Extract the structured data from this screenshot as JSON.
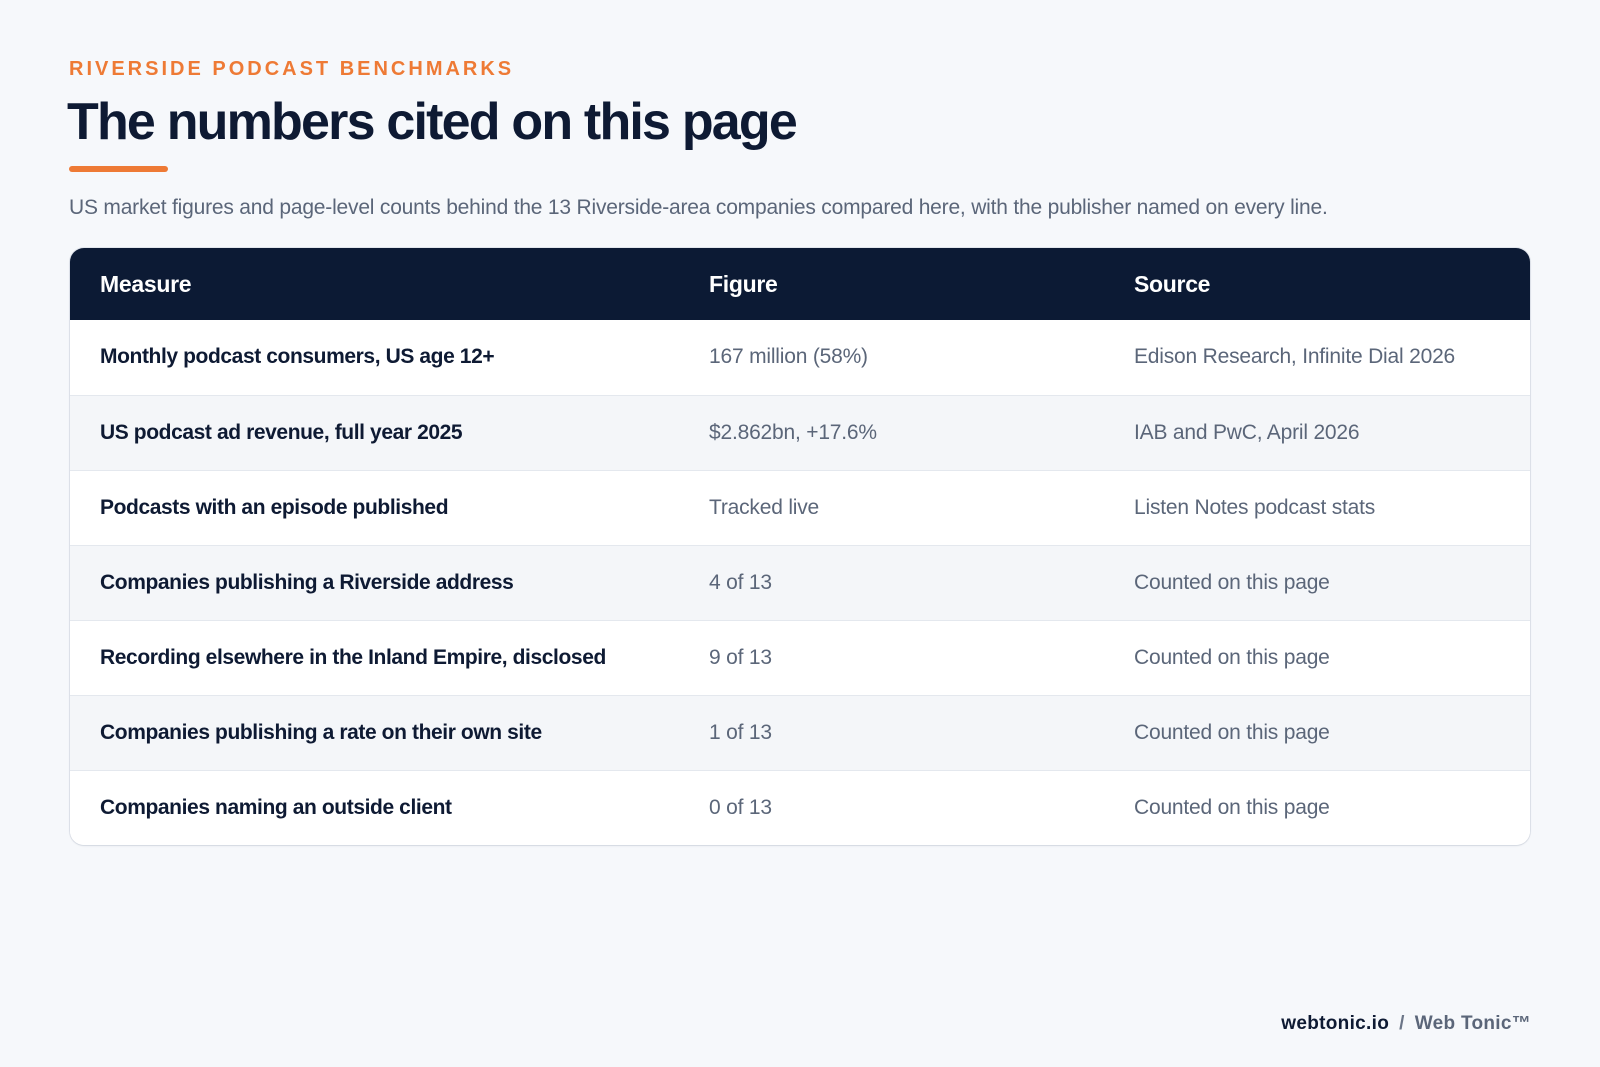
{
  "header": {
    "eyebrow": "RIVERSIDE PODCAST BENCHMARKS",
    "title": "The numbers cited on this page",
    "subtitle": "US market figures and page-level counts behind the 13 Riverside-area companies compared here, with the publisher named on every line."
  },
  "table": {
    "columns": [
      "Measure",
      "Figure",
      "Source"
    ],
    "rows": [
      {
        "measure": "Monthly podcast consumers, US age 12+",
        "figure": "167 million (58%)",
        "source": "Edison Research, Infinite Dial 2026"
      },
      {
        "measure": "US podcast ad revenue, full year 2025",
        "figure": "$2.862bn, +17.6%",
        "source": "IAB and PwC, April 2026"
      },
      {
        "measure": "Podcasts with an episode published",
        "figure": "Tracked live",
        "source": "Listen Notes podcast stats"
      },
      {
        "measure": "Companies publishing a Riverside address",
        "figure": "4 of 13",
        "source": "Counted on this page"
      },
      {
        "measure": "Recording elsewhere in the Inland Empire, disclosed",
        "figure": "9 of 13",
        "source": "Counted on this page"
      },
      {
        "measure": "Companies publishing a rate on their own site",
        "figure": "1 of 13",
        "source": "Counted on this page"
      },
      {
        "measure": "Companies naming an outside client",
        "figure": "0 of 13",
        "source": "Counted on this page"
      }
    ]
  },
  "footer": {
    "domain": "webtonic.io",
    "separator": "/",
    "brand": "Web Tonic™"
  },
  "colors": {
    "accent": "#ee7a35",
    "header_bg": "#0c1a34",
    "title_text": "#0e1a33",
    "muted_text": "#5b6679",
    "page_bg": "#f6f8fb"
  }
}
